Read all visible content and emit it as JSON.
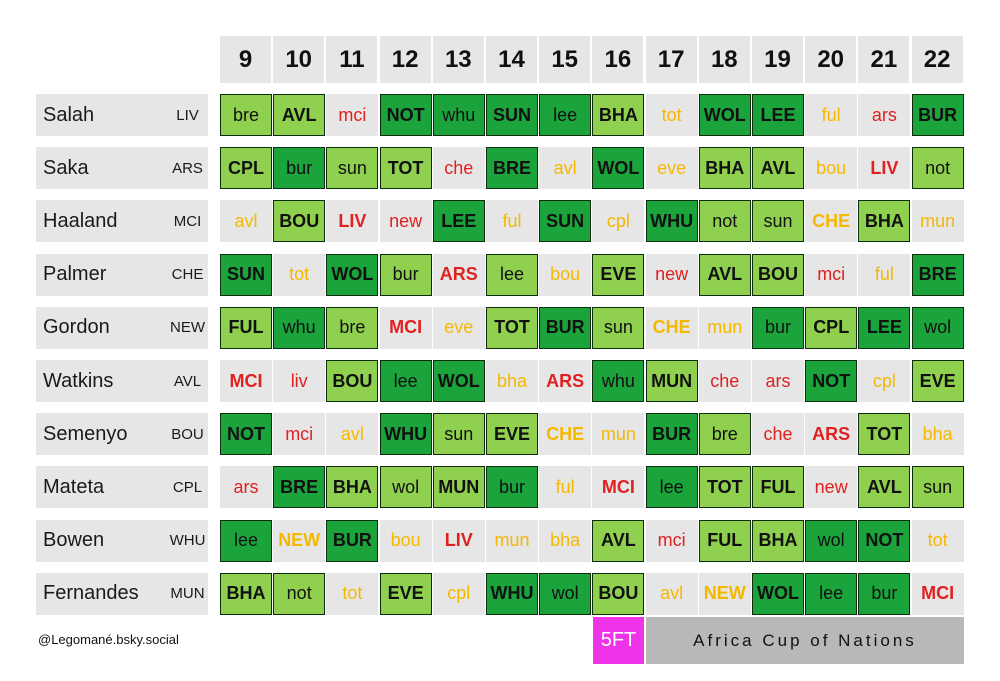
{
  "gameweeks": [
    "9",
    "10",
    "11",
    "12",
    "13",
    "14",
    "15",
    "16",
    "17",
    "18",
    "19",
    "20",
    "21",
    "22"
  ],
  "colors": {
    "lg": "#8fd14f",
    "dg": "#1ba33c",
    "yel": "#f5b800",
    "red": "#e02121",
    "gr": "#1a1a1a",
    "five_fit": "#ee33e8",
    "afcon": "#b8b8b8"
  },
  "players": [
    {
      "name": "Salah",
      "team": "LIV",
      "fixtures": [
        [
          "bre",
          "lg"
        ],
        [
          "AVL",
          "lg"
        ],
        [
          "mci",
          "red"
        ],
        [
          "NOT",
          "dg"
        ],
        [
          "whu",
          "dg"
        ],
        [
          "SUN",
          "dg"
        ],
        [
          "lee",
          "dg"
        ],
        [
          "BHA",
          "lg"
        ],
        [
          "tot",
          "yel"
        ],
        [
          "WOL",
          "dg"
        ],
        [
          "LEE",
          "dg"
        ],
        [
          "ful",
          "yel"
        ],
        [
          "ars",
          "red"
        ],
        [
          "BUR",
          "dg"
        ]
      ]
    },
    {
      "name": "Saka",
      "team": "ARS",
      "fixtures": [
        [
          "CPL",
          "lg"
        ],
        [
          "bur",
          "dg"
        ],
        [
          "sun",
          "lg"
        ],
        [
          "TOT",
          "lg"
        ],
        [
          "che",
          "red"
        ],
        [
          "BRE",
          "dg"
        ],
        [
          "avl",
          "yel"
        ],
        [
          "WOL",
          "dg"
        ],
        [
          "eve",
          "yel"
        ],
        [
          "BHA",
          "lg"
        ],
        [
          "AVL",
          "lg"
        ],
        [
          "bou",
          "yel"
        ],
        [
          "LIV",
          "red"
        ],
        [
          "not",
          "lg"
        ]
      ]
    },
    {
      "name": "Haaland",
      "team": "MCI",
      "fixtures": [
        [
          "avl",
          "yel"
        ],
        [
          "BOU",
          "lg"
        ],
        [
          "LIV",
          "red"
        ],
        [
          "new",
          "red"
        ],
        [
          "LEE",
          "dg"
        ],
        [
          "ful",
          "yel"
        ],
        [
          "SUN",
          "dg"
        ],
        [
          "cpl",
          "yel"
        ],
        [
          "WHU",
          "dg"
        ],
        [
          "not",
          "lg"
        ],
        [
          "sun",
          "lg"
        ],
        [
          "CHE",
          "yel"
        ],
        [
          "BHA",
          "lg"
        ],
        [
          "mun",
          "yel"
        ]
      ]
    },
    {
      "name": "Palmer",
      "team": "CHE",
      "fixtures": [
        [
          "SUN",
          "dg"
        ],
        [
          "tot",
          "yel"
        ],
        [
          "WOL",
          "dg"
        ],
        [
          "bur",
          "lg"
        ],
        [
          "ARS",
          "red"
        ],
        [
          "lee",
          "lg"
        ],
        [
          "bou",
          "yel"
        ],
        [
          "EVE",
          "lg"
        ],
        [
          "new",
          "red"
        ],
        [
          "AVL",
          "lg"
        ],
        [
          "BOU",
          "lg"
        ],
        [
          "mci",
          "red"
        ],
        [
          "ful",
          "yel"
        ],
        [
          "BRE",
          "dg"
        ]
      ]
    },
    {
      "name": "Gordon",
      "team": "NEW",
      "fixtures": [
        [
          "FUL",
          "lg"
        ],
        [
          "whu",
          "dg"
        ],
        [
          "bre",
          "lg"
        ],
        [
          "MCI",
          "red"
        ],
        [
          "eve",
          "yel"
        ],
        [
          "TOT",
          "lg"
        ],
        [
          "BUR",
          "dg"
        ],
        [
          "sun",
          "lg"
        ],
        [
          "CHE",
          "yel"
        ],
        [
          "mun",
          "yel"
        ],
        [
          "bur",
          "dg"
        ],
        [
          "CPL",
          "lg"
        ],
        [
          "LEE",
          "dg"
        ],
        [
          "wol",
          "dg"
        ]
      ]
    },
    {
      "name": "Watkins",
      "team": "AVL",
      "fixtures": [
        [
          "MCI",
          "red"
        ],
        [
          "liv",
          "red"
        ],
        [
          "BOU",
          "lg"
        ],
        [
          "lee",
          "dg"
        ],
        [
          "WOL",
          "dg"
        ],
        [
          "bha",
          "yel"
        ],
        [
          "ARS",
          "red"
        ],
        [
          "whu",
          "dg"
        ],
        [
          "MUN",
          "lg"
        ],
        [
          "che",
          "red"
        ],
        [
          "ars",
          "red"
        ],
        [
          "NOT",
          "dg"
        ],
        [
          "cpl",
          "yel"
        ],
        [
          "EVE",
          "lg"
        ]
      ]
    },
    {
      "name": "Semenyo",
      "team": "BOU",
      "fixtures": [
        [
          "NOT",
          "dg"
        ],
        [
          "mci",
          "red"
        ],
        [
          "avl",
          "yel"
        ],
        [
          "WHU",
          "dg"
        ],
        [
          "sun",
          "lg"
        ],
        [
          "EVE",
          "lg"
        ],
        [
          "CHE",
          "yel"
        ],
        [
          "mun",
          "yel"
        ],
        [
          "BUR",
          "dg"
        ],
        [
          "bre",
          "lg"
        ],
        [
          "che",
          "red"
        ],
        [
          "ARS",
          "red"
        ],
        [
          "TOT",
          "lg"
        ],
        [
          "bha",
          "yel"
        ]
      ]
    },
    {
      "name": "Mateta",
      "team": "CPL",
      "fixtures": [
        [
          "ars",
          "red"
        ],
        [
          "BRE",
          "dg"
        ],
        [
          "BHA",
          "lg"
        ],
        [
          "wol",
          "lg"
        ],
        [
          "MUN",
          "lg"
        ],
        [
          "bur",
          "dg"
        ],
        [
          "ful",
          "yel"
        ],
        [
          "MCI",
          "red"
        ],
        [
          "lee",
          "dg"
        ],
        [
          "TOT",
          "lg"
        ],
        [
          "FUL",
          "lg"
        ],
        [
          "new",
          "red"
        ],
        [
          "AVL",
          "lg"
        ],
        [
          "sun",
          "lg"
        ]
      ]
    },
    {
      "name": "Bowen",
      "team": "WHU",
      "fixtures": [
        [
          "lee",
          "dg"
        ],
        [
          "NEW",
          "yel"
        ],
        [
          "BUR",
          "dg"
        ],
        [
          "bou",
          "yel"
        ],
        [
          "LIV",
          "red"
        ],
        [
          "mun",
          "yel"
        ],
        [
          "bha",
          "yel"
        ],
        [
          "AVL",
          "lg"
        ],
        [
          "mci",
          "red"
        ],
        [
          "FUL",
          "lg"
        ],
        [
          "BHA",
          "lg"
        ],
        [
          "wol",
          "dg"
        ],
        [
          "NOT",
          "dg"
        ],
        [
          "tot",
          "yel"
        ]
      ]
    },
    {
      "name": "Fernandes",
      "team": "MUN",
      "fixtures": [
        [
          "BHA",
          "lg"
        ],
        [
          "not",
          "lg"
        ],
        [
          "tot",
          "yel"
        ],
        [
          "EVE",
          "lg"
        ],
        [
          "cpl",
          "yel"
        ],
        [
          "WHU",
          "dg"
        ],
        [
          "wol",
          "dg"
        ],
        [
          "BOU",
          "lg"
        ],
        [
          "avl",
          "yel"
        ],
        [
          "NEW",
          "yel"
        ],
        [
          "WOL",
          "dg"
        ],
        [
          "lee",
          "dg"
        ],
        [
          "bur",
          "dg"
        ],
        [
          "MCI",
          "red"
        ]
      ]
    }
  ],
  "credit": "@Legomané.bsky.social",
  "five_fit_label": "5FT",
  "afcon_label": "Africa Cup of Nations"
}
